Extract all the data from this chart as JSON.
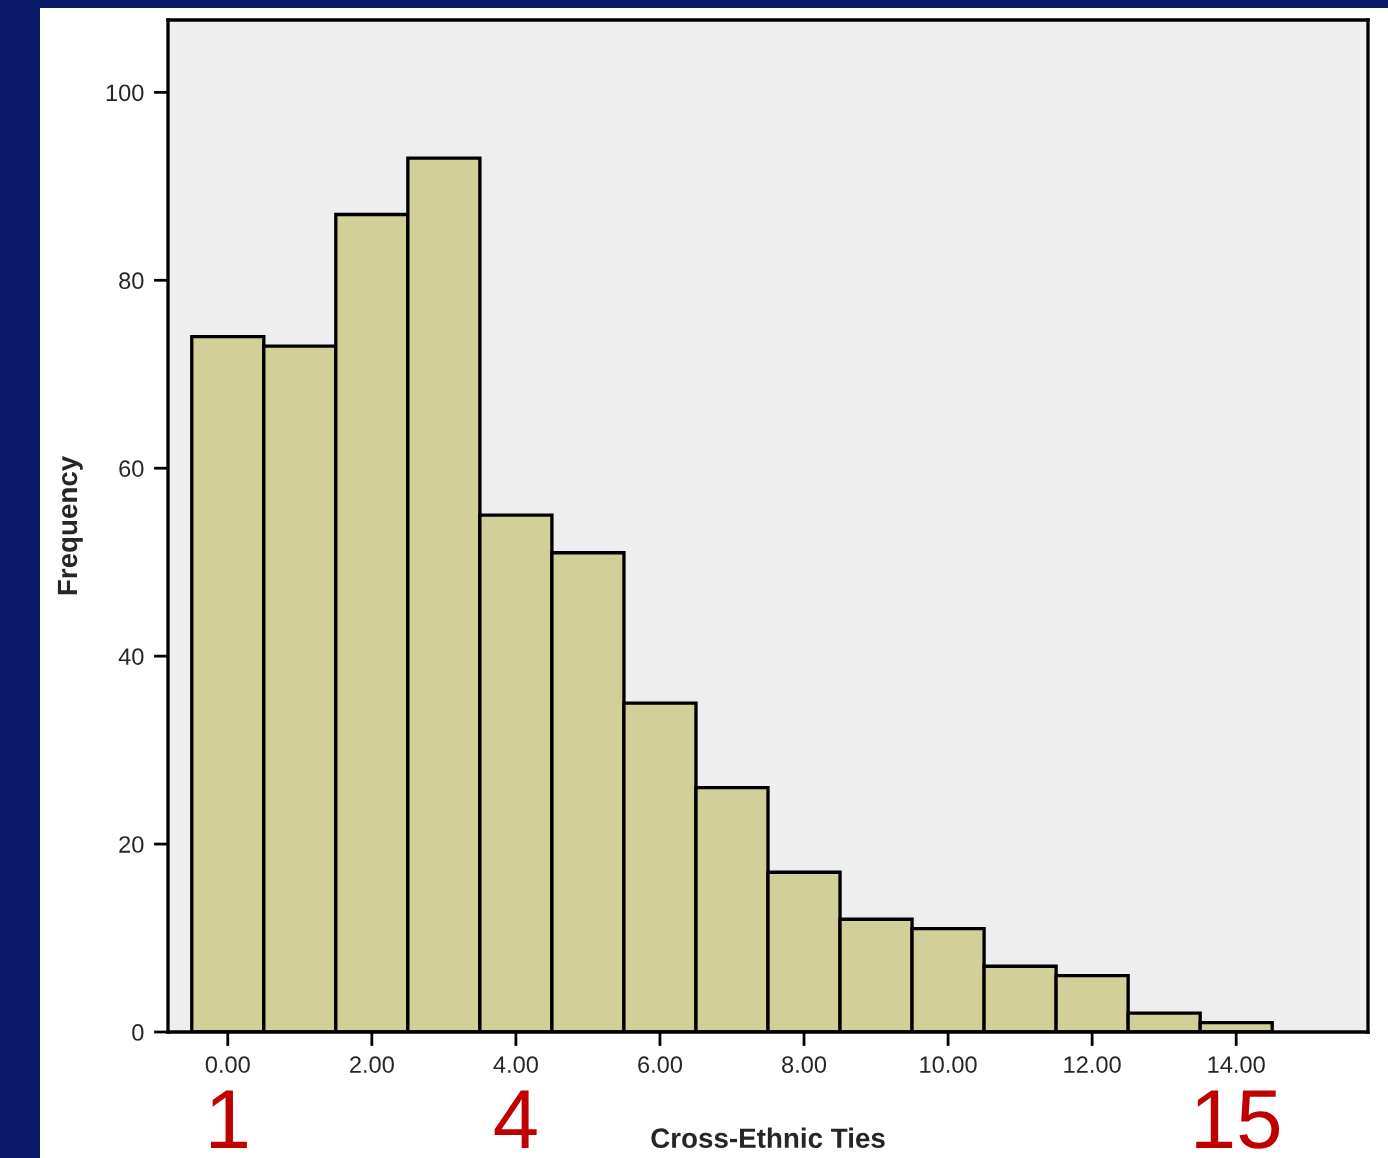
{
  "chart_data": {
    "type": "histogram",
    "xlabel": "Cross-Ethnic Ties",
    "ylabel": "Frequency",
    "bins": [
      -0.5,
      0.5,
      1.5,
      2.5,
      3.5,
      4.5,
      5.5,
      6.5,
      7.5,
      8.5,
      9.5,
      10.5,
      11.5,
      12.5,
      13.5,
      14.5
    ],
    "values": [
      74,
      73,
      87,
      93,
      55,
      51,
      35,
      26,
      17,
      12,
      11,
      7,
      6,
      2,
      1
    ],
    "color": "#d3cf98",
    "xlim": [
      -0.83,
      15.83
    ],
    "xticks": [
      {
        "value": 0,
        "label": "0.00"
      },
      {
        "value": 2,
        "label": "2.00"
      },
      {
        "value": 4,
        "label": "4.00"
      },
      {
        "value": 6,
        "label": "6.00"
      },
      {
        "value": 8,
        "label": "8.00"
      },
      {
        "value": 10,
        "label": "10.00"
      },
      {
        "value": 12,
        "label": "12.00"
      },
      {
        "value": 14,
        "label": "14.00"
      }
    ],
    "ylim": [
      0,
      107.7
    ],
    "yticks": [
      0,
      20,
      40,
      60,
      80,
      100
    ],
    "annotations": [
      {
        "text": "1",
        "x": 0,
        "y": 0
      },
      {
        "text": "4",
        "x": 4,
        "y": 0
      },
      {
        "text": "15",
        "x": 14,
        "y": 0
      }
    ],
    "grid": false,
    "legend": false
  }
}
